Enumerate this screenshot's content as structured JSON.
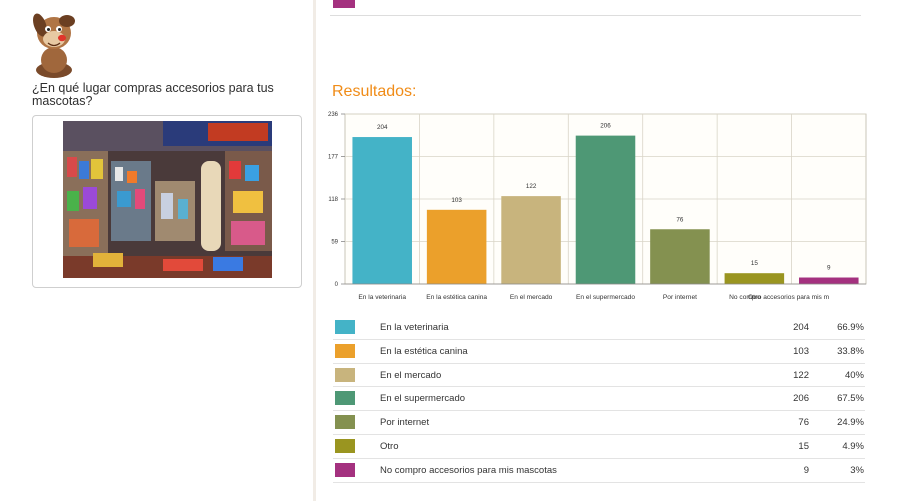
{
  "question": "¿En qué lugar compras accesorios para tus mascotas?",
  "results_title": "Resultados:",
  "colors": {
    "accent": "#f08c18",
    "grid": "#d9d4c7",
    "plot_bg": "#fffefa"
  },
  "icons": {
    "avatar": "cartoon-dog-icon",
    "photo": "pet-store-photo"
  },
  "chart_data": {
    "type": "bar",
    "title": "",
    "xlabel": "",
    "ylabel": "",
    "ylim": [
      0,
      236
    ],
    "yticks": [
      0,
      59,
      118,
      177,
      236
    ],
    "grid": true,
    "categories": [
      "En la veterinaria",
      "En la estética canina",
      "En el mercado",
      "En el supermercado",
      "Por internet",
      "Otro",
      "No compro accesorios para mis mascotas"
    ],
    "tick_labels": [
      "En la veterinaria",
      "En la estética canina",
      "En el mercado",
      "En el supermercado",
      "Por internet",
      "Otro",
      "No compro accesorios para mis m"
    ],
    "values": [
      204,
      103,
      122,
      206,
      76,
      15,
      9
    ],
    "colors": [
      "#44b3c7",
      "#eba02b",
      "#c8b47d",
      "#4e9875",
      "#849150",
      "#9a9520",
      "#a4317f"
    ]
  },
  "legend": [
    {
      "label": "En la veterinaria",
      "count": "204",
      "percent": "66.9%",
      "color": "#44b3c7"
    },
    {
      "label": "En la estética canina",
      "count": "103",
      "percent": "33.8%",
      "color": "#eba02b"
    },
    {
      "label": "En el mercado",
      "count": "122",
      "percent": "40%",
      "color": "#c8b47d"
    },
    {
      "label": "En el supermercado",
      "count": "206",
      "percent": "67.5%",
      "color": "#4e9875"
    },
    {
      "label": "Por internet",
      "count": "76",
      "percent": "24.9%",
      "color": "#849150"
    },
    {
      "label": "Otro",
      "count": "15",
      "percent": "4.9%",
      "color": "#9a9520"
    },
    {
      "label": "No compro accesorios para mis mascotas",
      "count": "9",
      "percent": "3%",
      "color": "#a4317f"
    }
  ]
}
